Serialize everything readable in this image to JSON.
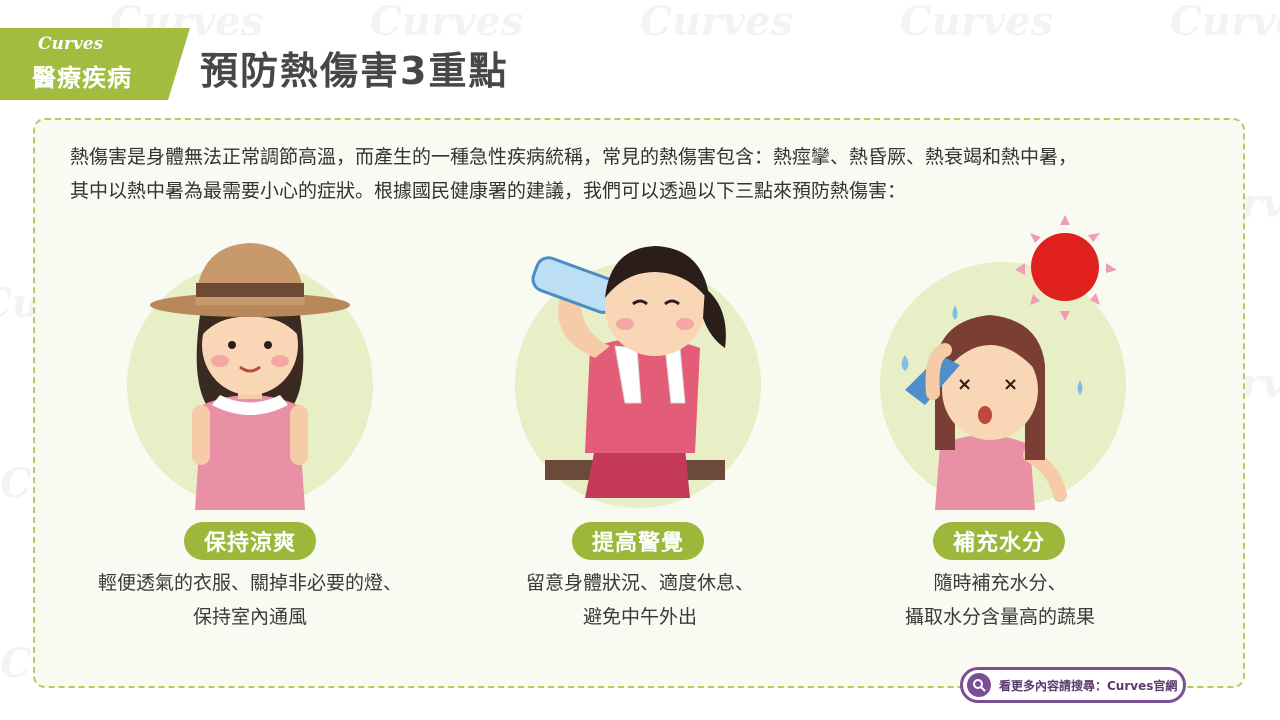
{
  "watermark_text": "Curves",
  "header": {
    "brand": "Curves",
    "category": "醫療疾病",
    "title": "預防熱傷害3重點"
  },
  "intro": {
    "line1": "熱傷害是身體無法正常調節高溫，而產生的一種急性疾病統稱，常見的熱傷害包含：熱痙攣、熱昏厥、熱衰竭和熱中暑，",
    "line2": "其中以熱中暑為最需要小心的症狀。根據國民健康署的建議，我們可以透過以下三點來預防熱傷害："
  },
  "tips": [
    {
      "label": "保持涼爽",
      "line1": "輕便透氣的衣服、關掉非必要的燈、",
      "line2": "保持室內通風",
      "illustration": "woman-straw-hat"
    },
    {
      "label": "提高警覺",
      "line1": "留意身體狀況、適度休息、",
      "line2": "避免中午外出",
      "illustration": "woman-drinking-water"
    },
    {
      "label": "補充水分",
      "line1": "隨時補充水分、",
      "line2": "攝取水分含量高的蔬果",
      "illustration": "woman-heatstroke-sun"
    }
  ],
  "footer": {
    "search_text": "看更多內容請搜尋：Curves官網",
    "icon": "search-icon"
  },
  "colors": {
    "accent_green": "#9cb73a",
    "badge_green": "#a2bc3f",
    "circle_green": "#e8efc6",
    "purple": "#7a4f94"
  }
}
